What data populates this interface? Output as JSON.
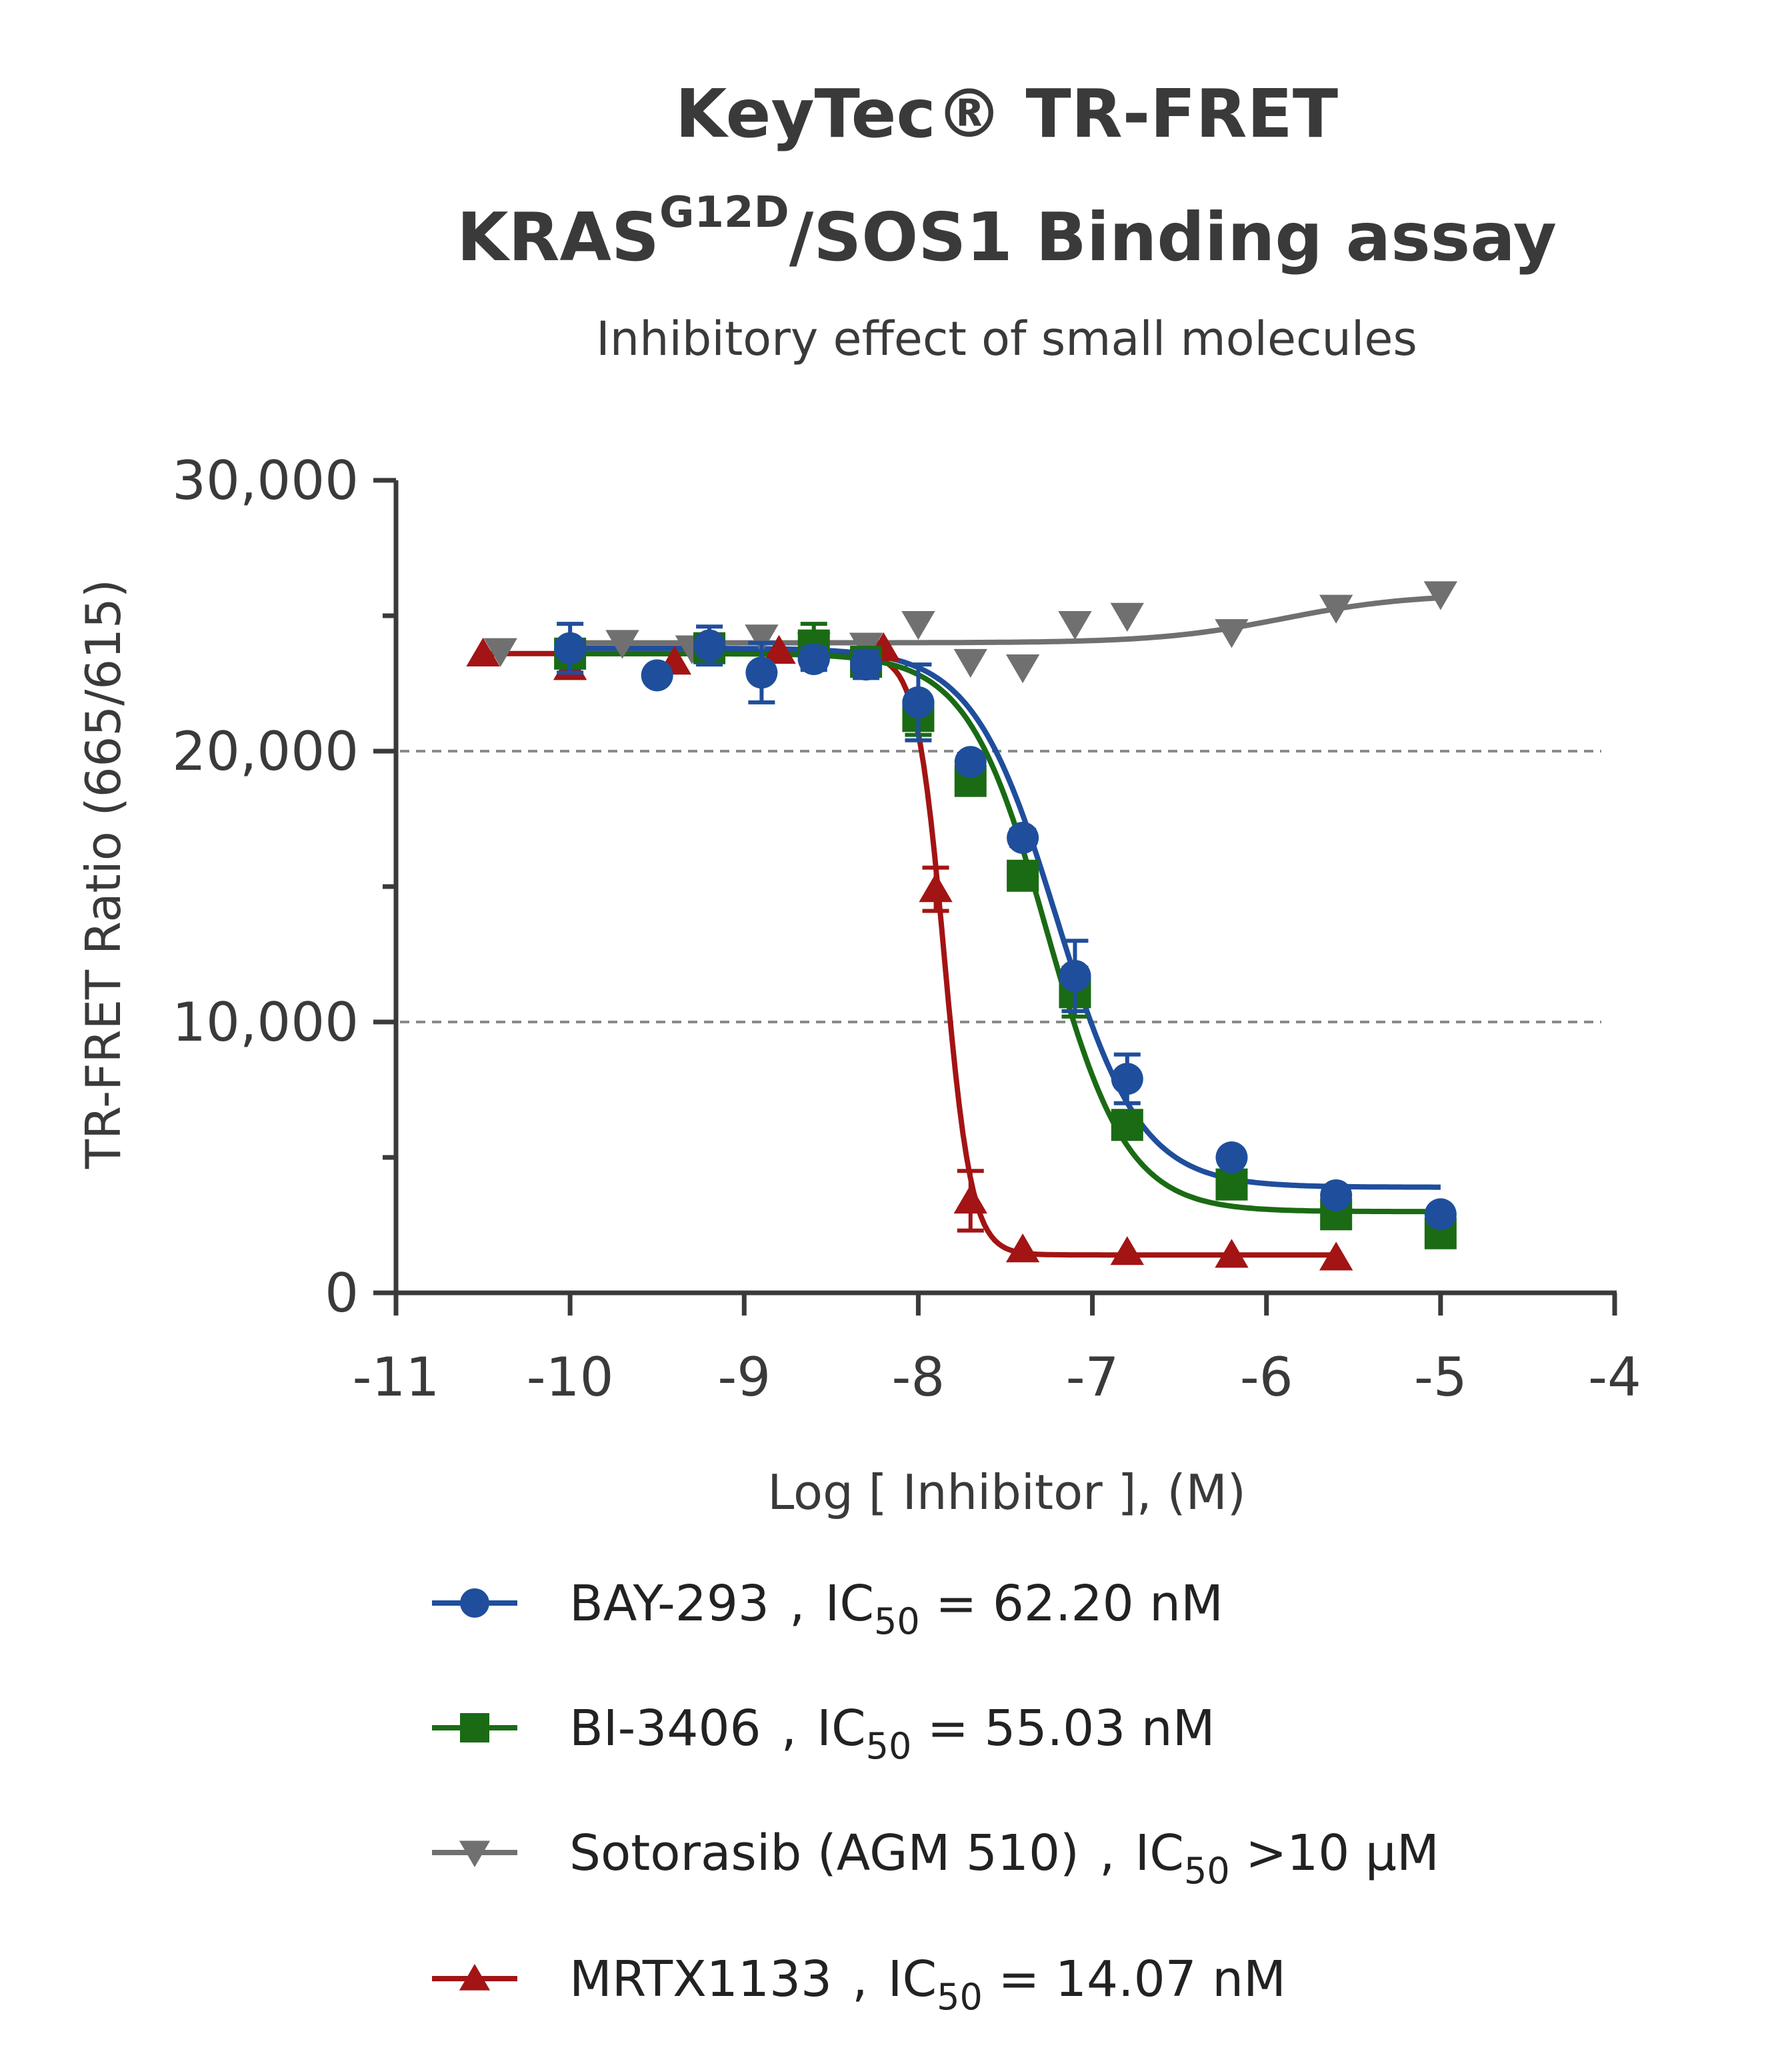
{
  "chart_data": {
    "type": "scatter",
    "title_line1": "KeyTec® TR-FRET",
    "title_line2_main": "KRAS",
    "title_line2_sup": "G12D",
    "title_line2_rest": "/SOS1 Binding assay",
    "subtitle": "Inhibitory effect of small molecules",
    "xlabel": "Log [ Inhibitor ], (M)",
    "ylabel": "TR-FRET Ratio (665/615)",
    "xlim": [
      -11,
      -4
    ],
    "ylim": [
      0,
      30000
    ],
    "xticks": [
      "-11",
      "-10",
      "-9",
      "-8",
      "-7",
      "-6",
      "-5",
      "-4"
    ],
    "yticks": [
      "0",
      "10,000",
      "20,000",
      "30,000"
    ],
    "grid": "dashed horizontal at 10,000 and 20,000",
    "legend_position": "bottom",
    "series": [
      {
        "name": "BAY-293",
        "ic50_text": "IC",
        "ic50_sub": "50",
        "ic50_value": " = 62.20 nM",
        "color": "#1f4e9c",
        "marker": "circle",
        "x": [
          -10,
          -9.5,
          -9.2,
          -8.9,
          -8.6,
          -8.3,
          -8,
          -7.7,
          -7.4,
          -7.1,
          -6.8,
          -6.2,
          -5.6,
          -5
        ],
        "y": [
          23800,
          22800,
          23900,
          22900,
          23400,
          23200,
          21800,
          19600,
          16800,
          11700,
          7900,
          5000,
          3600,
          2900
        ],
        "err": [
          900,
          0,
          700,
          1100,
          400,
          500,
          1400,
          300,
          300,
          1300,
          900,
          0,
          0,
          0
        ],
        "fit": {
          "top": 23800,
          "bottom": 3900,
          "logIC50": -7.206,
          "hill": 1.8,
          "x_start": -10,
          "x_end": -5
        }
      },
      {
        "name": "BI-3406",
        "ic50_text": "IC",
        "ic50_sub": "50",
        "ic50_value": " = 55.03 nM",
        "color": "#1a6b14",
        "marker": "square",
        "x": [
          -10,
          -9.2,
          -8.6,
          -8.3,
          -8,
          -7.7,
          -7.4,
          -7.1,
          -6.8,
          -6.2,
          -5.6,
          -5
        ],
        "y": [
          23600,
          23800,
          23900,
          23300,
          21300,
          18900,
          15400,
          11100,
          6200,
          4000,
          2900,
          2200
        ],
        "err": [
          500,
          400,
          800,
          300,
          700,
          500,
          500,
          900,
          500,
          0,
          0,
          0
        ],
        "fit": {
          "top": 23600,
          "bottom": 3000,
          "logIC50": -7.259,
          "hill": 1.9,
          "x_start": -10,
          "x_end": -5
        }
      },
      {
        "name": "Sotorasib (AGM 510)",
        "ic50_text": "IC",
        "ic50_sub": "50",
        "ic50_value": " >10 µM",
        "color": "#707070",
        "marker": "triangle-down",
        "x": [
          -10.4,
          -9.7,
          -9.3,
          -8.9,
          -8.6,
          -8.3,
          -8,
          -7.7,
          -7.4,
          -7.1,
          -6.8,
          -6.2,
          -5.6,
          -5
        ],
        "y": [
          23700,
          24000,
          23800,
          24200,
          23900,
          23900,
          24700,
          23300,
          23100,
          24700,
          25000,
          24400,
          25300,
          25800
        ],
        "err": [
          0,
          0,
          0,
          0,
          0,
          0,
          0,
          0,
          0,
          0,
          0,
          0,
          0,
          0
        ],
        "fit": {
          "top": 25800,
          "bottom": 24000,
          "logIC50": -5.9,
          "hill": -1.2,
          "x_start": -10,
          "x_end": -5
        }
      },
      {
        "name": "MRTX1133",
        "ic50_text": "IC",
        "ic50_sub": "50",
        "ic50_value": " = 14.07 nM",
        "color": "#a31414",
        "marker": "triangle-up",
        "x": [
          -10.5,
          -10,
          -9.4,
          -8.8,
          -8.2,
          -7.9,
          -7.7,
          -7.4,
          -6.8,
          -6.2,
          -5.6
        ],
        "y": [
          23600,
          23100,
          23300,
          23700,
          23800,
          14900,
          3400,
          1600,
          1500,
          1400,
          1300
        ],
        "err": [
          0,
          0,
          0,
          0,
          0,
          800,
          1100,
          0,
          0,
          0,
          0
        ],
        "fit": {
          "top": 23600,
          "bottom": 1400,
          "logIC50": -7.852,
          "hill": 5.5,
          "x_start": -10.5,
          "x_end": -5.6
        }
      }
    ]
  }
}
